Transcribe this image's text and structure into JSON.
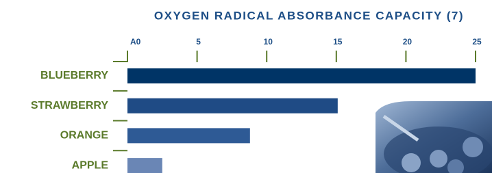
{
  "chart_data": {
    "type": "bar",
    "orientation": "horizontal",
    "title": "OXYGEN RADICAL ABSORBANCE CAPACITY (7)",
    "categories": [
      "BLUEBERRY",
      "STRAWBERRY",
      "ORANGE",
      "APPLE"
    ],
    "values": [
      25.0,
      15.1,
      8.8,
      2.5
    ],
    "colors": [
      "#003466",
      "#1f4b85",
      "#2e5a95",
      "#6a86b5"
    ],
    "xlim": [
      0,
      25
    ],
    "xticks": [
      {
        "value": 0,
        "label": "A0"
      },
      5,
      10,
      15,
      20,
      25
    ]
  }
}
